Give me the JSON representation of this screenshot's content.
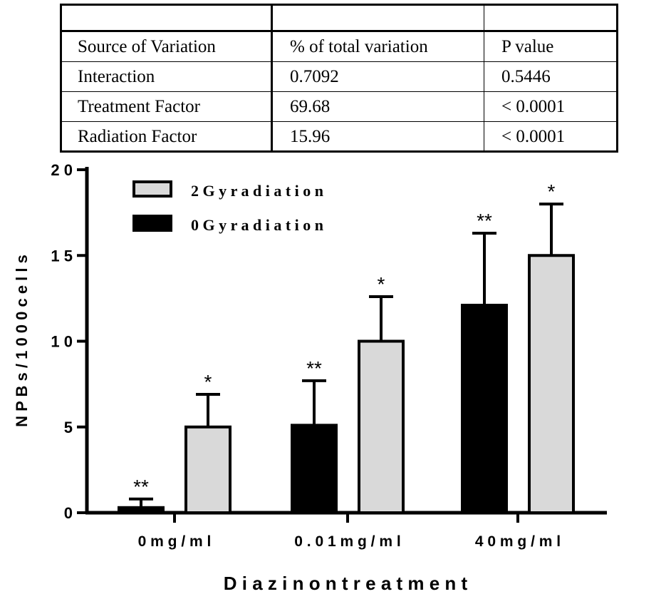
{
  "table": {
    "header_row": [
      "",
      "",
      ""
    ],
    "columns": [
      "Source of Variation",
      "% of total variation",
      "P value"
    ],
    "rows": [
      [
        "Interaction",
        "0.7092",
        "0.5446"
      ],
      [
        "Treatment Factor",
        "69.68",
        "< 0.0001"
      ],
      [
        "Radiation Factor",
        "15.96",
        "< 0.0001"
      ]
    ]
  },
  "chart_data": {
    "type": "bar",
    "xlabel": "D i a z i n o n   t r e a t m e n t",
    "ylabel": "N P B s / 1 0 0 0 c e l l s",
    "ylim": [
      0,
      20
    ],
    "yticks": [
      "0",
      "5",
      "1 0",
      "1 5",
      "2 0"
    ],
    "ytick_values": [
      0,
      5,
      10,
      15,
      20
    ],
    "categories": [
      "0  m g / m l",
      "0 . 0 1  m g / m l",
      "4 0  m g / m l"
    ],
    "legend_placement": "top-left",
    "grid": false,
    "series": [
      {
        "name": "0  G y  r a d i a t i o n",
        "color": "#000000",
        "values": [
          0.3,
          5.1,
          12.1
        ],
        "errors": [
          0.5,
          2.6,
          4.2
        ],
        "significance": [
          "**",
          "**",
          "**"
        ]
      },
      {
        "name": "2  G y  r a d i a t i o n",
        "color": "#d9d9d9",
        "values": [
          5.0,
          10.0,
          15.0
        ],
        "errors": [
          1.9,
          2.6,
          3.0
        ],
        "significance": [
          "*",
          "*",
          "*"
        ]
      }
    ],
    "legend_order": [
      1,
      0
    ]
  }
}
